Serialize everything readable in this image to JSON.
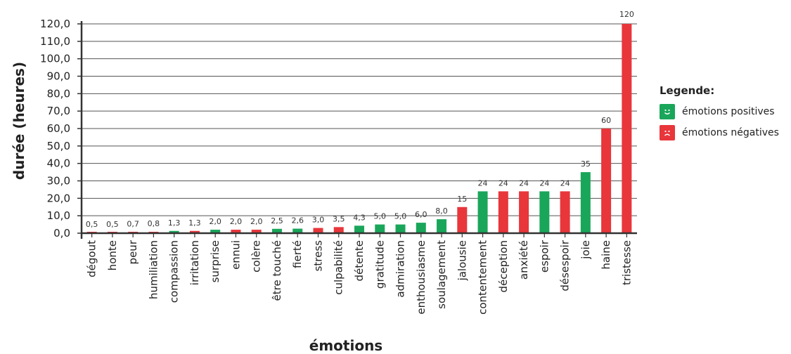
{
  "chart_data": {
    "type": "bar",
    "xlabel": "émotions",
    "ylabel": "durée (heures)",
    "ylim": [
      0,
      120
    ],
    "yticks": [
      "0,0",
      "10,0",
      "20,0",
      "30,0",
      "40,0",
      "50,0",
      "60,0",
      "70,0",
      "80,0",
      "90,0",
      "100,0",
      "110,0",
      "120,0"
    ],
    "grid": "horizontal",
    "categories": [
      "dégout",
      "honte",
      "peur",
      "humiliation",
      "compassion",
      "irritation",
      "surprise",
      "ennui",
      "colère",
      "être touché",
      "fierté",
      "stress",
      "culpabilité",
      "détente",
      "gratitude",
      "admiration",
      "enthousiasme",
      "soulagement",
      "jalousie",
      "contentement",
      "déception",
      "anxiété",
      "espoir",
      "désespoir",
      "joie",
      "haine",
      "tristesse"
    ],
    "values": [
      0.5,
      0.5,
      0.7,
      0.8,
      1.3,
      1.3,
      2.0,
      2.0,
      2.0,
      2.5,
      2.6,
      3.0,
      3.5,
      4.3,
      5.0,
      5.0,
      6.0,
      8.0,
      15,
      24,
      24,
      24,
      24,
      24,
      35,
      60,
      120
    ],
    "value_labels": [
      "0,5",
      "0,5",
      "0,7",
      "0,8",
      "1,3",
      "1,3",
      "2,0",
      "2,0",
      "2,0",
      "2,5",
      "2,6",
      "3,0",
      "3,5",
      "4,3",
      "5,0",
      "5,0",
      "6,0",
      "8,0",
      "15",
      "24",
      "24",
      "24",
      "24",
      "24",
      "35",
      "60",
      "120"
    ],
    "polarity": [
      "negative",
      "negative",
      "negative",
      "negative",
      "positive",
      "negative",
      "positive",
      "negative",
      "negative",
      "positive",
      "positive",
      "negative",
      "negative",
      "positive",
      "positive",
      "positive",
      "positive",
      "positive",
      "negative",
      "positive",
      "negative",
      "negative",
      "positive",
      "negative",
      "positive",
      "negative",
      "negative"
    ],
    "colors": {
      "positive": "#1aa65a",
      "negative": "#e8363b"
    },
    "legend": {
      "title": "Legende:",
      "placement": "right",
      "entries": [
        {
          "key": "positive",
          "label": "émotions positives",
          "icon": "smiley-icon"
        },
        {
          "key": "negative",
          "label": "émotions négatives",
          "icon": "sad-face-icon"
        }
      ]
    }
  }
}
